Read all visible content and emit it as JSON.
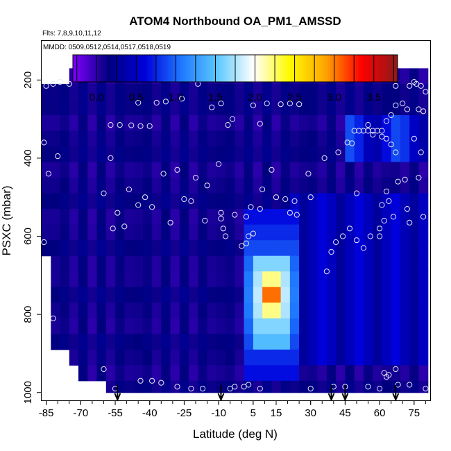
{
  "chart_data": {
    "type": "heatmap",
    "title": "ATOM4 Northbound OA_PM1_AMSSD",
    "flights_note": "Flts: 7,8,9,10,11,12",
    "dates_note": "MMDD: 0509,0512,0514,0517,0518,0519",
    "xlabel": "Latitude (deg N)",
    "ylabel": "PSXC (mbar)",
    "xlim": [
      -87,
      82
    ],
    "ylim": [
      1020,
      100
    ],
    "x_ticks": [
      -85,
      -70,
      -55,
      -40,
      -25,
      -10,
      5,
      15,
      30,
      45,
      60,
      75
    ],
    "y_ticks": [
      200,
      400,
      600,
      800,
      1000
    ],
    "colorbar": {
      "range": [
        -0.3,
        3.8
      ],
      "ticks": [
        0.0,
        0.5,
        1.0,
        1.5,
        2.0,
        2.5,
        3.0,
        3.5
      ],
      "tick_labels": [
        "0.0",
        "0.5",
        "1.0",
        "1.5",
        "2.0",
        "2.5",
        "3.0",
        "3.5"
      ],
      "colors": [
        "#7f00ff",
        "#00007f",
        "#0000dc",
        "#1e78ff",
        "#5ac8ff",
        "#ffffff",
        "#fffa00",
        "#ffa500",
        "#ff0000",
        "#8b1a1a"
      ]
    },
    "grid": {
      "lat_edges": [
        -87,
        -83,
        -79,
        -75,
        -71,
        -67,
        -63,
        -59,
        -55,
        -51,
        -47,
        -43,
        -39,
        -35,
        -31,
        -27,
        -23,
        -19,
        -15,
        -11,
        -7,
        -3,
        1,
        5,
        9,
        13,
        17,
        21,
        25,
        29,
        33,
        37,
        41,
        45,
        49,
        53,
        57,
        61,
        65,
        69,
        73,
        77,
        81
      ],
      "p_edges": [
        170,
        210,
        250,
        290,
        330,
        370,
        410,
        450,
        490,
        530,
        570,
        610,
        650,
        690,
        730,
        770,
        810,
        850,
        890,
        930,
        970,
        1000
      ]
    },
    "features": {
      "background_value": 0.12,
      "plume_center": {
        "lat": 13,
        "p": 750,
        "value": 3.3
      },
      "plume_bands": [
        {
          "lat_min": 2,
          "lat_max": 25,
          "p_min": 520,
          "p_max": 950,
          "value": 1.1
        },
        {
          "lat_min": 5,
          "lat_max": 22,
          "p_min": 650,
          "p_max": 900,
          "value": 1.8
        }
      ],
      "northern_layer": {
        "lat_min": 45,
        "lat_max": 80,
        "p_min": 300,
        "p_max": 420,
        "value": 0.9
      }
    },
    "observation_points": [
      [
        -72,
        190
      ],
      [
        -69,
        190
      ],
      [
        -66,
        190
      ],
      [
        -62,
        190
      ],
      [
        -82,
        210
      ],
      [
        -79,
        205
      ],
      [
        -75,
        210
      ],
      [
        -85,
        215
      ],
      [
        -45,
        258
      ],
      [
        -37,
        258
      ],
      [
        -33,
        255
      ],
      [
        -26,
        248
      ],
      [
        -19,
        210
      ],
      [
        -13,
        270
      ],
      [
        -9,
        260
      ],
      [
        -6,
        315
      ],
      [
        -4,
        300
      ],
      [
        5,
        265
      ],
      [
        8,
        312
      ],
      [
        11,
        260
      ],
      [
        17,
        262
      ],
      [
        21,
        260
      ],
      [
        25,
        262
      ],
      [
        34,
        185
      ],
      [
        -57,
        315
      ],
      [
        -53,
        315
      ],
      [
        -48,
        316
      ],
      [
        -44,
        318
      ],
      [
        -40,
        318
      ],
      [
        -86,
        360
      ],
      [
        -84,
        440
      ],
      [
        -80,
        395
      ],
      [
        -57,
        400
      ],
      [
        -49,
        480
      ],
      [
        -42,
        500
      ],
      [
        -34,
        440
      ],
      [
        -28,
        430
      ],
      [
        -20,
        450
      ],
      [
        -15,
        470
      ],
      [
        -10,
        415
      ],
      [
        -56,
        580
      ],
      [
        -54,
        540
      ],
      [
        -51,
        575
      ],
      [
        -45,
        520
      ],
      [
        -39,
        525
      ],
      [
        -31,
        565
      ],
      [
        -25,
        505
      ],
      [
        -22,
        510
      ],
      [
        -9,
        555
      ],
      [
        9,
        480
      ],
      [
        13,
        430
      ],
      [
        19,
        505
      ],
      [
        21,
        540
      ],
      [
        24,
        545
      ],
      [
        29,
        440
      ],
      [
        36,
        400
      ],
      [
        42,
        385
      ],
      [
        46,
        360
      ],
      [
        48,
        362
      ],
      [
        49,
        330
      ],
      [
        51,
        330
      ],
      [
        53,
        330
      ],
      [
        55,
        330
      ],
      [
        57,
        330
      ],
      [
        59,
        330
      ],
      [
        61,
        330
      ],
      [
        63,
        305
      ],
      [
        65,
        290
      ],
      [
        67,
        265
      ],
      [
        70,
        260
      ],
      [
        72,
        275
      ],
      [
        77,
        275
      ],
      [
        79,
        280
      ],
      [
        80,
        230
      ],
      [
        73,
        215
      ],
      [
        75,
        205
      ],
      [
        76,
        210
      ],
      [
        78,
        215
      ],
      [
        67,
        215
      ],
      [
        55,
        315
      ],
      [
        57,
        340
      ],
      [
        61,
        345
      ],
      [
        63,
        350
      ],
      [
        65,
        365
      ],
      [
        67,
        385
      ],
      [
        75,
        350
      ],
      [
        78,
        385
      ],
      [
        77,
        450
      ],
      [
        71,
        455
      ],
      [
        68,
        460
      ],
      [
        79,
        550
      ],
      [
        73,
        565
      ],
      [
        66,
        550
      ],
      [
        62,
        560
      ],
      [
        60,
        580
      ],
      [
        56,
        600
      ],
      [
        53,
        630
      ],
      [
        50,
        610
      ],
      [
        47,
        580
      ],
      [
        44,
        600
      ],
      [
        41,
        615
      ],
      [
        39,
        640
      ],
      [
        37,
        690
      ],
      [
        50,
        490
      ],
      [
        60,
        600
      ],
      [
        64,
        510
      ],
      [
        72,
        530
      ],
      [
        -8,
        580
      ],
      [
        -7,
        600
      ],
      [
        0,
        625
      ],
      [
        3,
        600
      ],
      [
        5,
        593
      ],
      [
        2,
        618
      ],
      [
        8,
        530
      ],
      [
        15,
        500
      ],
      [
        23,
        510
      ],
      [
        30,
        500
      ],
      [
        -86,
        615
      ],
      [
        -82,
        810
      ],
      [
        -60,
        940
      ],
      [
        -55,
        990
      ],
      [
        -44,
        970
      ],
      [
        -39,
        970
      ],
      [
        -35,
        975
      ],
      [
        -28,
        985
      ],
      [
        -22,
        990
      ],
      [
        -17,
        990
      ],
      [
        -5,
        990
      ],
      [
        -3,
        985
      ],
      [
        1,
        985
      ],
      [
        3,
        980
      ],
      [
        8,
        990
      ],
      [
        30,
        990
      ],
      [
        40,
        985
      ],
      [
        45,
        985
      ],
      [
        55,
        985
      ],
      [
        60,
        990
      ],
      [
        63,
        960
      ],
      [
        64,
        955
      ],
      [
        62,
        950
      ],
      [
        67,
        940
      ],
      [
        68,
        980
      ],
      [
        73,
        980
      ],
      [
        80,
        990
      ],
      [
        -9,
        540
      ],
      [
        -16,
        560
      ],
      [
        -3,
        545
      ],
      [
        2,
        550
      ],
      [
        4,
        525
      ],
      [
        -60,
        490
      ],
      [
        63,
        485
      ],
      [
        61,
        520
      ]
    ],
    "arrows_lat": [
      -54,
      -9,
      39,
      45,
      67
    ]
  }
}
